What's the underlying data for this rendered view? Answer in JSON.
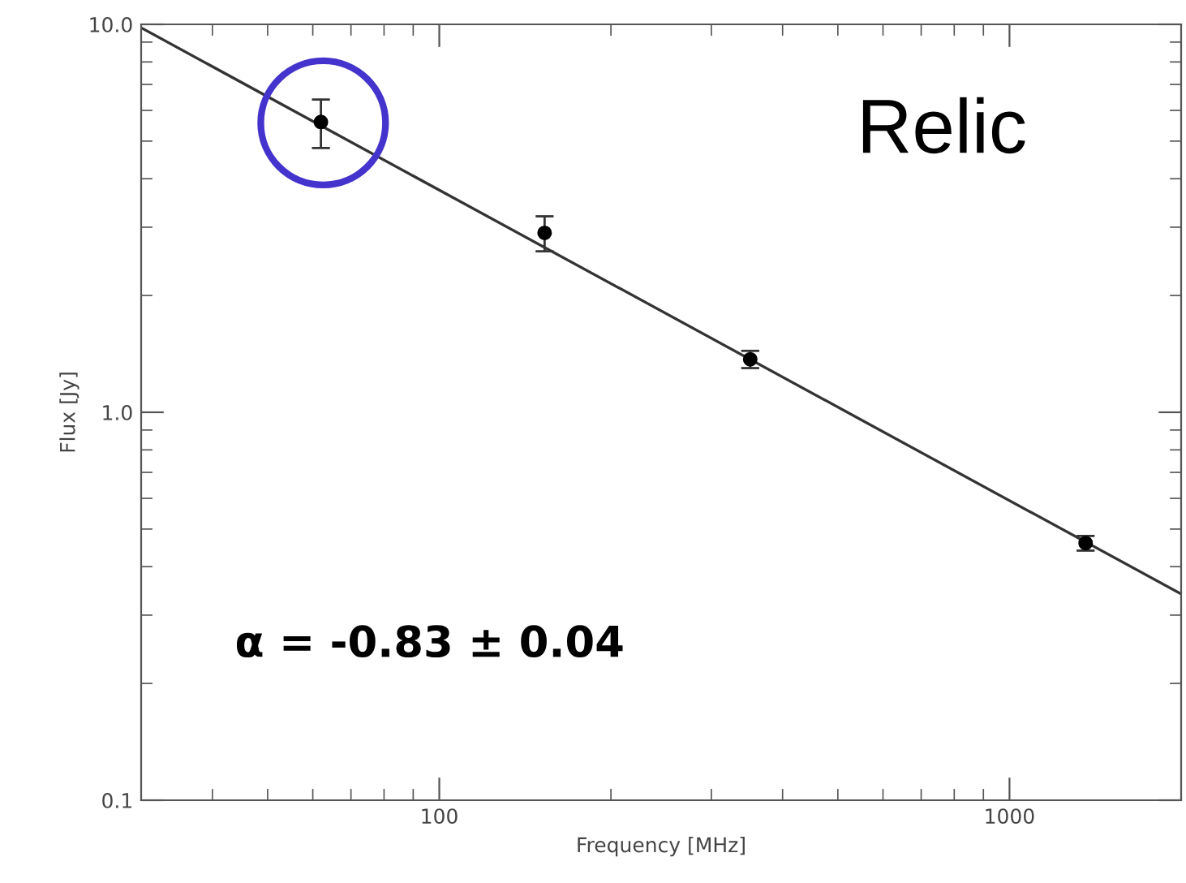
{
  "chart_data": {
    "type": "scatter",
    "xlabel": "Frequency [MHz]",
    "ylabel": "Flux [Jy]",
    "log": "xy",
    "xlim": [
      30,
      2000
    ],
    "ylim": [
      0.1,
      10
    ],
    "xticks": [
      100,
      1000
    ],
    "yticks": [
      {
        "value": 0.1,
        "label": "0.1"
      },
      {
        "value": 1,
        "label": "1.0"
      },
      {
        "value": 10,
        "label": "10.0"
      }
    ],
    "grid": false,
    "legend": false,
    "series": [
      {
        "color": "#000000",
        "marker": "circle",
        "x": [
          62,
          153,
          351,
          1360
        ],
        "values": [
          5.6,
          2.9,
          1.37,
          0.46
        ],
        "errors": [
          [
            4.8,
            6.4
          ],
          [
            2.6,
            3.2
          ],
          [
            1.3,
            1.44
          ],
          [
            0.44,
            0.48
          ]
        ]
      },
      {
        "type": "line",
        "color": "#333333",
        "marker": "none",
        "line_style": "solid",
        "x": [
          30,
          2000
        ],
        "values": [
          9.8,
          0.34
        ]
      }
    ],
    "annotations": [
      "Relic",
      "α = -0.83 ± 0.04"
    ]
  }
}
